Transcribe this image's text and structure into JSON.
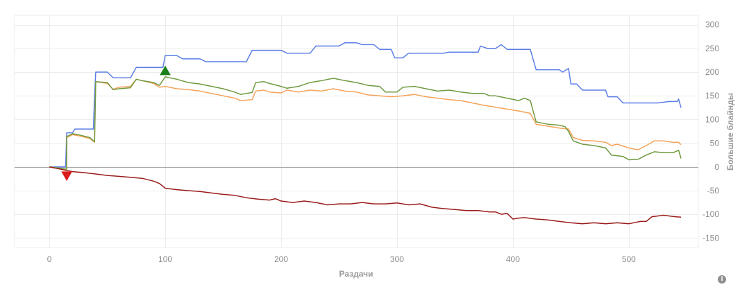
{
  "chart_data": {
    "type": "line",
    "xlabel": "Раздачи",
    "ylabel": "Большие блайнды",
    "xlim": [
      -30,
      560
    ],
    "ylim": [
      -170,
      320
    ],
    "x_ticks": [
      0,
      100,
      200,
      300,
      400,
      500
    ],
    "y_ticks": [
      300,
      250,
      200,
      150,
      100,
      50,
      0,
      -50,
      -100,
      -150
    ],
    "grid": true,
    "legend": "none",
    "series": [
      {
        "color": "#5b7fe6",
        "points": [
          [
            0,
            0
          ],
          [
            10,
            0
          ],
          [
            14,
            0
          ],
          [
            15,
            72
          ],
          [
            20,
            72
          ],
          [
            22,
            80
          ],
          [
            30,
            80
          ],
          [
            38,
            80
          ],
          [
            39,
            150
          ],
          [
            40,
            200
          ],
          [
            50,
            200
          ],
          [
            55,
            188
          ],
          [
            70,
            188
          ],
          [
            75,
            210
          ],
          [
            85,
            210
          ],
          [
            90,
            210
          ],
          [
            98,
            210
          ],
          [
            100,
            235
          ],
          [
            110,
            235
          ],
          [
            115,
            228
          ],
          [
            130,
            228
          ],
          [
            135,
            222
          ],
          [
            170,
            222
          ],
          [
            175,
            246
          ],
          [
            200,
            246
          ],
          [
            205,
            240
          ],
          [
            225,
            240
          ],
          [
            230,
            255
          ],
          [
            250,
            255
          ],
          [
            255,
            262
          ],
          [
            265,
            262
          ],
          [
            270,
            258
          ],
          [
            280,
            258
          ],
          [
            285,
            248
          ],
          [
            295,
            248
          ],
          [
            298,
            230
          ],
          [
            305,
            230
          ],
          [
            310,
            240
          ],
          [
            340,
            240
          ],
          [
            345,
            242
          ],
          [
            370,
            242
          ],
          [
            372,
            255
          ],
          [
            378,
            250
          ],
          [
            385,
            250
          ],
          [
            390,
            258
          ],
          [
            395,
            248
          ],
          [
            415,
            248
          ],
          [
            420,
            205
          ],
          [
            440,
            205
          ],
          [
            443,
            200
          ],
          [
            448,
            208
          ],
          [
            450,
            175
          ],
          [
            455,
            175
          ],
          [
            460,
            162
          ],
          [
            480,
            162
          ],
          [
            482,
            148
          ],
          [
            490,
            148
          ],
          [
            495,
            135
          ],
          [
            525,
            135
          ],
          [
            535,
            138
          ],
          [
            542,
            138
          ],
          [
            543,
            143
          ],
          [
            545,
            125
          ]
        ]
      },
      {
        "color": "#f5a35a",
        "points": [
          [
            0,
            0
          ],
          [
            10,
            -3
          ],
          [
            15,
            -5
          ],
          [
            15,
            62
          ],
          [
            20,
            68
          ],
          [
            25,
            66
          ],
          [
            35,
            60
          ],
          [
            39,
            52
          ],
          [
            40,
            180
          ],
          [
            50,
            176
          ],
          [
            55,
            164
          ],
          [
            60,
            168
          ],
          [
            70,
            170
          ],
          [
            75,
            185
          ],
          [
            80,
            182
          ],
          [
            90,
            176
          ],
          [
            95,
            168
          ],
          [
            100,
            170
          ],
          [
            110,
            165
          ],
          [
            120,
            163
          ],
          [
            130,
            160
          ],
          [
            140,
            155
          ],
          [
            150,
            150
          ],
          [
            160,
            145
          ],
          [
            165,
            140
          ],
          [
            175,
            142
          ],
          [
            178,
            160
          ],
          [
            185,
            162
          ],
          [
            190,
            158
          ],
          [
            200,
            156
          ],
          [
            205,
            162
          ],
          [
            215,
            158
          ],
          [
            225,
            162
          ],
          [
            235,
            160
          ],
          [
            245,
            165
          ],
          [
            255,
            160
          ],
          [
            265,
            158
          ],
          [
            275,
            152
          ],
          [
            285,
            150
          ],
          [
            295,
            148
          ],
          [
            305,
            150
          ],
          [
            315,
            153
          ],
          [
            325,
            148
          ],
          [
            335,
            145
          ],
          [
            345,
            142
          ],
          [
            355,
            140
          ],
          [
            365,
            135
          ],
          [
            375,
            130
          ],
          [
            385,
            126
          ],
          [
            395,
            122
          ],
          [
            405,
            118
          ],
          [
            415,
            113
          ],
          [
            420,
            90
          ],
          [
            430,
            86
          ],
          [
            440,
            82
          ],
          [
            448,
            80
          ],
          [
            452,
            62
          ],
          [
            460,
            56
          ],
          [
            470,
            55
          ],
          [
            480,
            52
          ],
          [
            485,
            45
          ],
          [
            490,
            48
          ],
          [
            500,
            40
          ],
          [
            508,
            36
          ],
          [
            515,
            45
          ],
          [
            522,
            55
          ],
          [
            530,
            55
          ],
          [
            538,
            52
          ],
          [
            543,
            52
          ],
          [
            545,
            47
          ]
        ]
      },
      {
        "color": "#6f9a3f",
        "points": [
          [
            0,
            0
          ],
          [
            10,
            -3
          ],
          [
            15,
            -5
          ],
          [
            15,
            64
          ],
          [
            20,
            70
          ],
          [
            25,
            68
          ],
          [
            35,
            62
          ],
          [
            39,
            53
          ],
          [
            40,
            180
          ],
          [
            50,
            178
          ],
          [
            55,
            163
          ],
          [
            60,
            165
          ],
          [
            70,
            167
          ],
          [
            75,
            185
          ],
          [
            80,
            182
          ],
          [
            90,
            178
          ],
          [
            95,
            172
          ],
          [
            100,
            190
          ],
          [
            110,
            185
          ],
          [
            120,
            178
          ],
          [
            130,
            175
          ],
          [
            140,
            170
          ],
          [
            150,
            165
          ],
          [
            160,
            158
          ],
          [
            165,
            153
          ],
          [
            175,
            157
          ],
          [
            178,
            178
          ],
          [
            185,
            180
          ],
          [
            190,
            176
          ],
          [
            200,
            170
          ],
          [
            205,
            166
          ],
          [
            215,
            170
          ],
          [
            225,
            178
          ],
          [
            235,
            182
          ],
          [
            245,
            187
          ],
          [
            255,
            182
          ],
          [
            265,
            178
          ],
          [
            275,
            172
          ],
          [
            285,
            170
          ],
          [
            290,
            158
          ],
          [
            300,
            158
          ],
          [
            305,
            168
          ],
          [
            315,
            170
          ],
          [
            325,
            165
          ],
          [
            335,
            160
          ],
          [
            345,
            162
          ],
          [
            355,
            158
          ],
          [
            365,
            155
          ],
          [
            375,
            155
          ],
          [
            380,
            150
          ],
          [
            385,
            150
          ],
          [
            395,
            145
          ],
          [
            405,
            140
          ],
          [
            410,
            145
          ],
          [
            415,
            140
          ],
          [
            420,
            95
          ],
          [
            430,
            90
          ],
          [
            440,
            88
          ],
          [
            445,
            85
          ],
          [
            448,
            75
          ],
          [
            452,
            55
          ],
          [
            460,
            48
          ],
          [
            470,
            45
          ],
          [
            480,
            40
          ],
          [
            485,
            25
          ],
          [
            495,
            22
          ],
          [
            500,
            15
          ],
          [
            508,
            16
          ],
          [
            515,
            25
          ],
          [
            522,
            32
          ],
          [
            530,
            30
          ],
          [
            538,
            30
          ],
          [
            543,
            35
          ],
          [
            545,
            18
          ]
        ]
      },
      {
        "color": "#9b1b1b",
        "points": [
          [
            0,
            0
          ],
          [
            10,
            -5
          ],
          [
            20,
            -10
          ],
          [
            30,
            -12
          ],
          [
            40,
            -15
          ],
          [
            50,
            -18
          ],
          [
            60,
            -20
          ],
          [
            70,
            -22
          ],
          [
            80,
            -24
          ],
          [
            90,
            -30
          ],
          [
            95,
            -35
          ],
          [
            100,
            -45
          ],
          [
            110,
            -48
          ],
          [
            120,
            -50
          ],
          [
            130,
            -52
          ],
          [
            140,
            -55
          ],
          [
            150,
            -58
          ],
          [
            160,
            -60
          ],
          [
            170,
            -65
          ],
          [
            180,
            -68
          ],
          [
            190,
            -70
          ],
          [
            195,
            -67
          ],
          [
            200,
            -72
          ],
          [
            210,
            -75
          ],
          [
            220,
            -72
          ],
          [
            230,
            -75
          ],
          [
            240,
            -80
          ],
          [
            250,
            -78
          ],
          [
            260,
            -78
          ],
          [
            270,
            -75
          ],
          [
            280,
            -78
          ],
          [
            290,
            -78
          ],
          [
            300,
            -76
          ],
          [
            310,
            -80
          ],
          [
            320,
            -78
          ],
          [
            330,
            -85
          ],
          [
            340,
            -88
          ],
          [
            350,
            -90
          ],
          [
            360,
            -92
          ],
          [
            370,
            -92
          ],
          [
            380,
            -95
          ],
          [
            385,
            -95
          ],
          [
            390,
            -100
          ],
          [
            395,
            -98
          ],
          [
            400,
            -110
          ],
          [
            405,
            -108
          ],
          [
            410,
            -107
          ],
          [
            420,
            -110
          ],
          [
            430,
            -112
          ],
          [
            440,
            -115
          ],
          [
            450,
            -118
          ],
          [
            460,
            -120
          ],
          [
            470,
            -118
          ],
          [
            480,
            -120
          ],
          [
            490,
            -118
          ],
          [
            500,
            -120
          ],
          [
            510,
            -115
          ],
          [
            515,
            -115
          ],
          [
            520,
            -105
          ],
          [
            530,
            -102
          ],
          [
            540,
            -105
          ],
          [
            545,
            -106
          ]
        ]
      }
    ],
    "markers": [
      {
        "x": 100,
        "y": 202,
        "shape": "triangle-up",
        "color": "#1a7f1a"
      },
      {
        "x": 15,
        "y": -18,
        "shape": "triangle-down",
        "color": "#d91c1c"
      }
    ]
  }
}
